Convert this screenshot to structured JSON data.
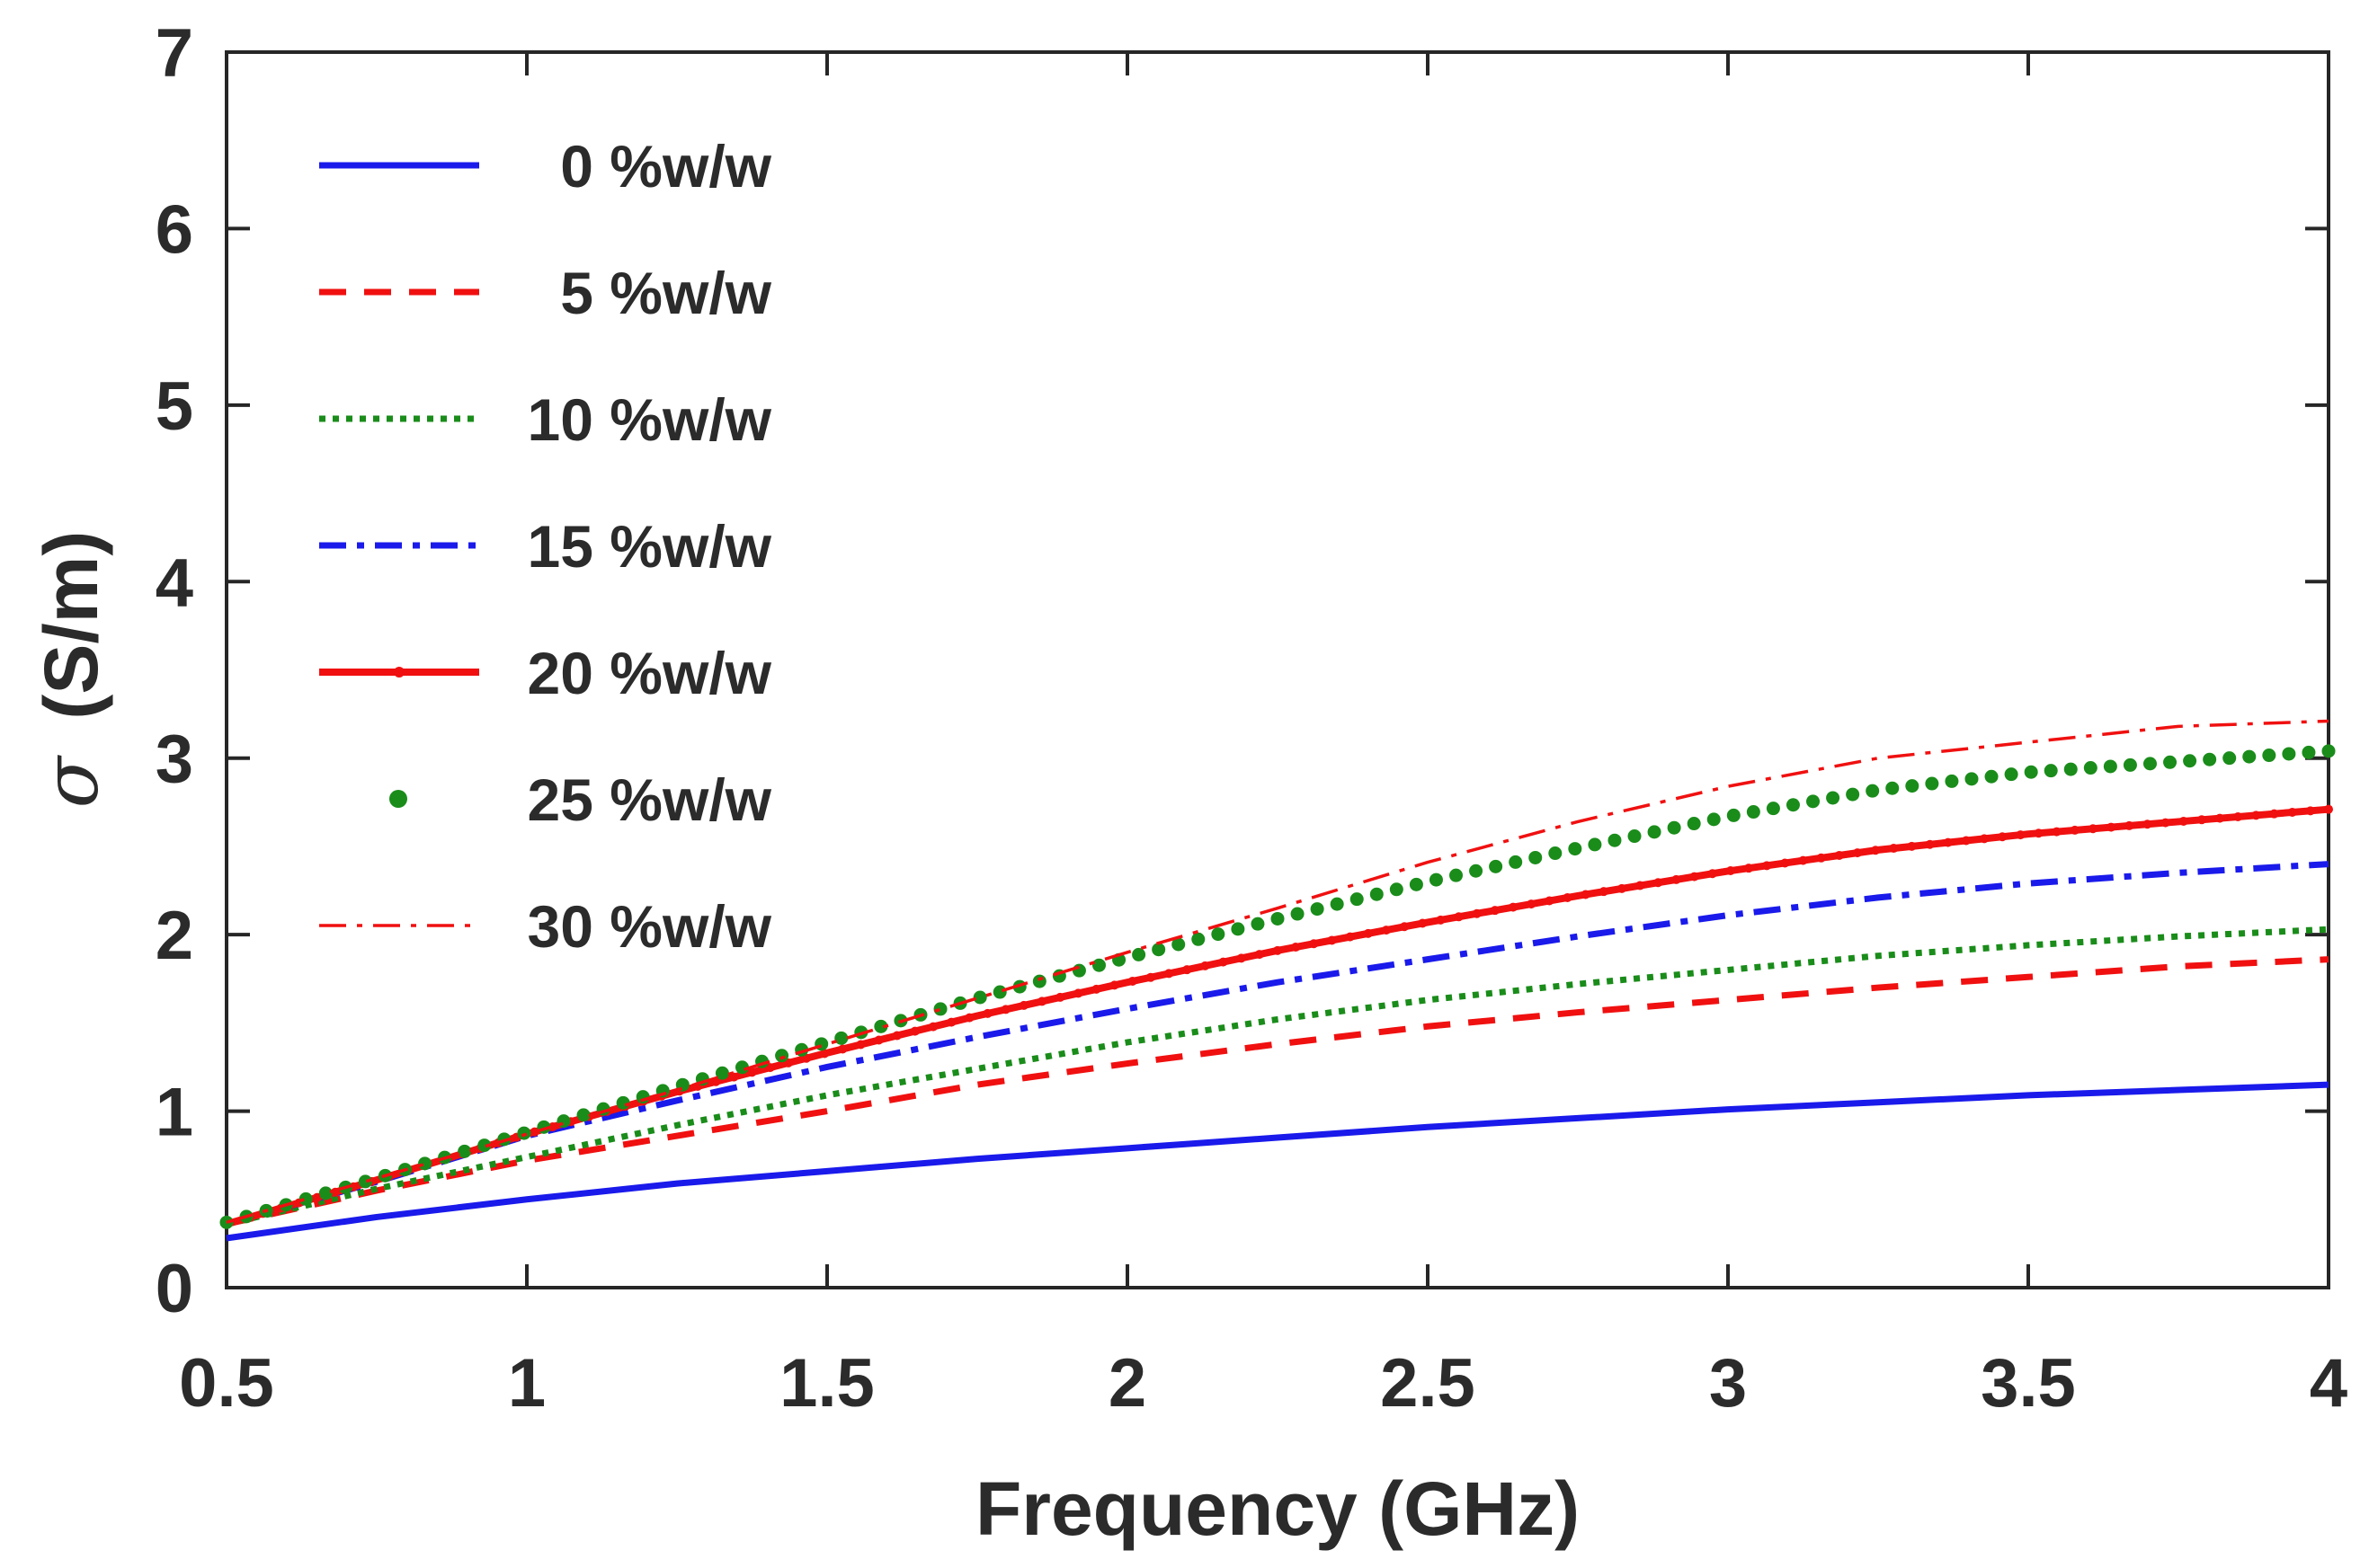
{
  "chart_data": {
    "type": "line",
    "title": "",
    "xlabel": "Frequency (GHz)",
    "ylabel_symbol": "σ",
    "ylabel_unit": "(S/m)",
    "xlim": [
      0.5,
      4
    ],
    "ylim": [
      0,
      7
    ],
    "xticks": [
      0.5,
      1,
      1.5,
      2,
      2.5,
      3,
      3.5,
      4
    ],
    "xtick_labels": [
      "0.5",
      "1",
      "1.5",
      "2",
      "2.5",
      "3",
      "3.5",
      "4"
    ],
    "yticks": [
      0,
      1,
      2,
      3,
      4,
      5,
      6,
      7
    ],
    "ytick_labels": [
      "0",
      "1",
      "2",
      "3",
      "4",
      "5",
      "6",
      "7"
    ],
    "grid": false,
    "legend_position": "top-left",
    "x": [
      0.5,
      0.75,
      1.0,
      1.25,
      1.5,
      1.75,
      2.0,
      2.25,
      2.5,
      2.75,
      3.0,
      3.25,
      3.5,
      3.75,
      4.0
    ],
    "series": [
      {
        "name": "0 %w/w",
        "label": "0 %w/w",
        "color": "#1a1aeb",
        "style": "solid",
        "values": [
          0.28,
          0.4,
          0.5,
          0.59,
          0.66,
          0.73,
          0.79,
          0.85,
          0.91,
          0.96,
          1.01,
          1.05,
          1.09,
          1.12,
          1.15
        ]
      },
      {
        "name": "5 %w/w",
        "label": "5 %w/w",
        "color": "#f01010",
        "style": "dashed",
        "values": [
          0.36,
          0.55,
          0.72,
          0.86,
          1.0,
          1.15,
          1.27,
          1.38,
          1.48,
          1.56,
          1.63,
          1.7,
          1.76,
          1.82,
          1.86
        ]
      },
      {
        "name": "10 %w/w",
        "label": "10 %w/w",
        "color": "#1a8c1a",
        "style": "dotted",
        "values": [
          0.36,
          0.56,
          0.74,
          0.92,
          1.09,
          1.24,
          1.39,
          1.52,
          1.63,
          1.72,
          1.8,
          1.88,
          1.94,
          1.99,
          2.03
        ]
      },
      {
        "name": "15 %w/w",
        "label": "15 %w/w",
        "color": "#1a1aeb",
        "style": "dashdot",
        "values": [
          0.36,
          0.6,
          0.86,
          1.06,
          1.25,
          1.42,
          1.58,
          1.73,
          1.86,
          1.99,
          2.11,
          2.21,
          2.29,
          2.35,
          2.4
        ]
      },
      {
        "name": "20 %w/w",
        "label": "20 %w/w",
        "color": "#f01010",
        "style": "solid-marker",
        "values": [
          0.36,
          0.61,
          0.87,
          1.11,
          1.33,
          1.54,
          1.73,
          1.91,
          2.07,
          2.22,
          2.36,
          2.48,
          2.57,
          2.64,
          2.71
        ]
      },
      {
        "name": "25 %w/w",
        "label": "25 %w/w",
        "color": "#1a8c1a",
        "style": "dots",
        "values": [
          0.37,
          0.62,
          0.88,
          1.14,
          1.39,
          1.64,
          1.87,
          2.09,
          2.3,
          2.49,
          2.67,
          2.82,
          2.92,
          2.98,
          3.04
        ]
      },
      {
        "name": "30 %w/w",
        "label": "30 %w/w",
        "color": "#f01010",
        "style": "thin-dashdot",
        "values": [
          0.37,
          0.62,
          0.87,
          1.12,
          1.38,
          1.64,
          1.9,
          2.15,
          2.41,
          2.64,
          2.84,
          3.0,
          3.09,
          3.18,
          3.21
        ]
      }
    ]
  }
}
